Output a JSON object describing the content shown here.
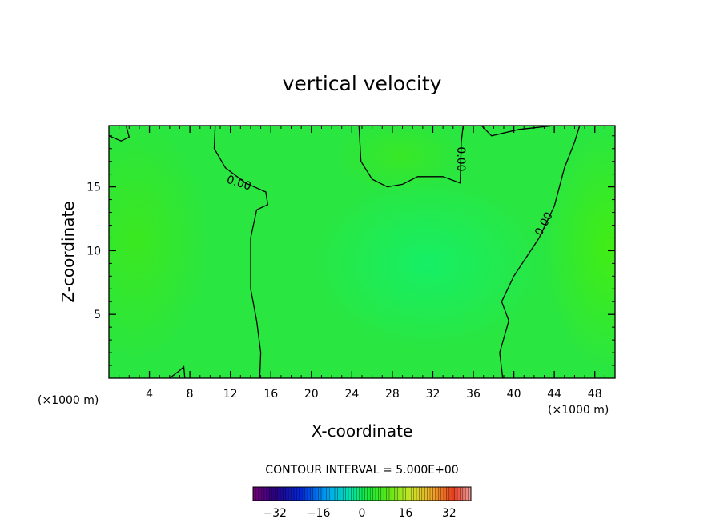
{
  "chart_data": {
    "type": "contour",
    "title": "vertical velocity",
    "xlabel": "X-coordinate",
    "ylabel": "Z-coordinate",
    "x_unit_left": "(×1000 m)",
    "x_unit_right": "(×1000 m)",
    "xlim": [
      0,
      50
    ],
    "ylim": [
      0,
      19.8
    ],
    "x_ticks": [
      4,
      8,
      12,
      16,
      20,
      24,
      28,
      32,
      36,
      40,
      44,
      48
    ],
    "y_ticks": [
      5,
      10,
      15
    ],
    "contour_labels": [
      "0.00",
      "0.00",
      "0.00"
    ],
    "contour_interval_text": "CONTOUR INTERVAL = 5.000E+00",
    "colorbar": {
      "ticks": [
        -32,
        -16,
        0,
        16,
        32
      ],
      "min": -40,
      "max": 40
    },
    "field_note": "near-zero vertical velocity everywhere; weak updrafts at x≈2-6 and x≈46-50, weak downdraft centered x≈32, z≈9",
    "zero_contours": [
      [
        [
          0.0,
          19.0
        ],
        [
          1.2,
          18.6
        ],
        [
          2.0,
          18.9
        ],
        [
          1.7,
          19.8
        ]
      ],
      [
        [
          6.0,
          0.0
        ],
        [
          7.0,
          0.6
        ],
        [
          7.4,
          0.9
        ],
        [
          7.5,
          0.0
        ]
      ],
      [
        [
          10.5,
          19.8
        ],
        [
          10.4,
          18.0
        ],
        [
          11.5,
          16.5
        ],
        [
          13.5,
          15.3
        ],
        [
          15.5,
          14.6
        ],
        [
          15.7,
          13.6
        ],
        [
          14.6,
          13.2
        ],
        [
          14.0,
          11.0
        ],
        [
          14.0,
          7.0
        ],
        [
          14.6,
          4.5
        ],
        [
          15.0,
          2.0
        ],
        [
          14.9,
          0.0
        ]
      ],
      [
        [
          24.7,
          19.8
        ],
        [
          24.9,
          17.0
        ],
        [
          26.0,
          15.6
        ],
        [
          27.5,
          15.0
        ],
        [
          29.0,
          15.2
        ],
        [
          30.5,
          15.8
        ],
        [
          33.0,
          15.8
        ],
        [
          34.7,
          15.3
        ],
        [
          34.8,
          18.5
        ],
        [
          35.0,
          19.8
        ]
      ],
      [
        [
          36.8,
          19.8
        ],
        [
          37.8,
          19.0
        ],
        [
          40.5,
          19.5
        ],
        [
          44.0,
          19.8
        ]
      ],
      [
        [
          38.9,
          0.0
        ],
        [
          38.6,
          2.0
        ],
        [
          39.5,
          4.5
        ],
        [
          38.8,
          6.0
        ],
        [
          40.0,
          8.0
        ],
        [
          42.5,
          11.0
        ],
        [
          44.0,
          13.5
        ],
        [
          45.0,
          16.5
        ],
        [
          46.0,
          18.5
        ],
        [
          46.5,
          19.8
        ]
      ]
    ]
  }
}
